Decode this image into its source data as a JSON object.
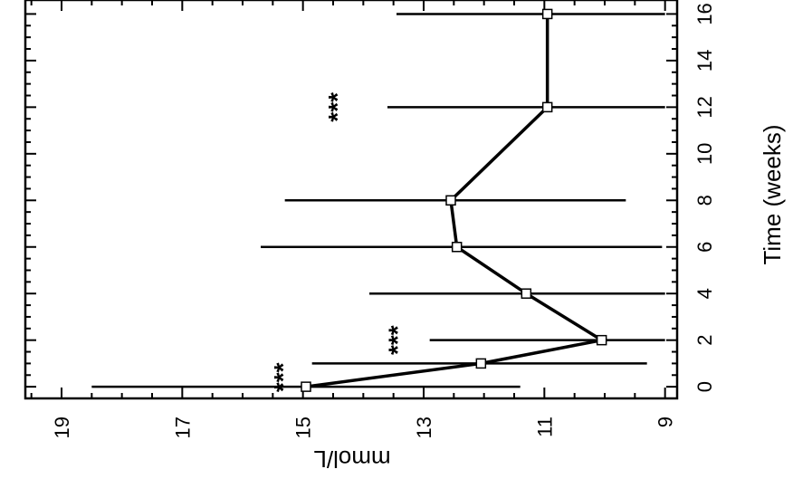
{
  "chart_data": {
    "type": "line",
    "orientation": "rotated-90-clockwise",
    "xlabel": "Time (weeks)",
    "ylabel": "mmol/L",
    "x_ticks": [
      0,
      2,
      4,
      6,
      8,
      10,
      12,
      14,
      16
    ],
    "y_ticks": [
      9,
      11,
      13,
      15,
      17,
      19
    ],
    "xlim": [
      -0.5,
      16.6
    ],
    "ylim": [
      8.8,
      19.6
    ],
    "series": [
      {
        "x": [
          0,
          1,
          2,
          4,
          6,
          8,
          12,
          16
        ],
        "y": [
          14.95,
          12.05,
          10.05,
          11.3,
          12.45,
          12.55,
          10.95,
          10.95
        ],
        "error_low": [
          11.4,
          9.3,
          9.0,
          9.0,
          9.05,
          9.65,
          9.0,
          9.0
        ],
        "error_high": [
          18.5,
          14.85,
          12.9,
          13.9,
          15.7,
          15.3,
          13.6,
          13.45
        ]
      }
    ],
    "annotations": [
      {
        "text": "***",
        "x": 0.4,
        "y": 15.3
      },
      {
        "text": "***",
        "x": 2.0,
        "y": 13.4
      },
      {
        "text": "***",
        "x": 12.0,
        "y": 14.4
      }
    ],
    "grid": false,
    "marker": "square"
  }
}
